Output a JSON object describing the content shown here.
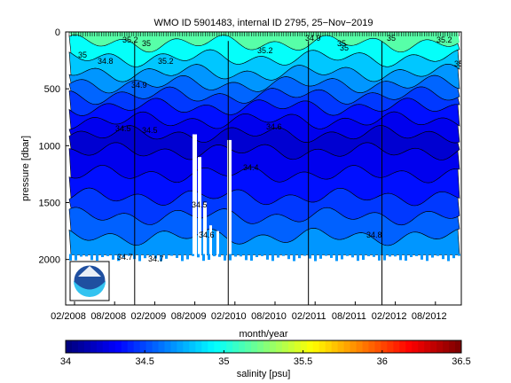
{
  "chart_data": {
    "type": "heatmap",
    "title": "WMO ID 5901483, internal ID 2795, 25−Nov−2019",
    "xlabel": "month/year",
    "ylabel": "pressure [dbar]",
    "x_ticks": [
      "02/2008",
      "08/2008",
      "02/2009",
      "08/2009",
      "02/2010",
      "08/2010",
      "02/2011",
      "08/2011",
      "02/2012",
      "08/2012"
    ],
    "x_range": [
      "2008-02",
      "2012-11"
    ],
    "y_ticks": [
      0,
      500,
      1000,
      1500,
      2000
    ],
    "ylim": [
      2400,
      0
    ],
    "y_reversed": true,
    "colorbar": {
      "label": "salinity [psu]",
      "ticks": [
        "34",
        "34.5",
        "35",
        "35.5",
        "36",
        "36.5"
      ],
      "range": [
        34,
        36.5
      ]
    },
    "contour_labels": [
      "35",
      "34.8",
      "35.2",
      "35",
      "35.2",
      "34.9",
      "34.5",
      "34.5",
      "34.4",
      "34.5",
      "34.6",
      "34.6",
      "34.7",
      "34.7",
      "35.2",
      "34.9",
      "35",
      "35",
      "35.2",
      "35",
      "34.8",
      "35"
    ],
    "depth_bands": [
      {
        "top": 0,
        "value": 35.15
      },
      {
        "top": 100,
        "value": 34.95
      },
      {
        "top": 230,
        "value": 34.8
      },
      {
        "top": 360,
        "value": 34.68
      },
      {
        "top": 460,
        "value": 34.56
      },
      {
        "top": 560,
        "value": 34.45
      },
      {
        "top": 660,
        "value": 34.35
      },
      {
        "top": 780,
        "value": 34.27
      },
      {
        "top": 900,
        "value": 34.2
      },
      {
        "top": 1050,
        "value": 34.27
      },
      {
        "top": 1250,
        "value": 34.35
      },
      {
        "top": 1450,
        "value": 34.45
      },
      {
        "top": 1620,
        "value": 34.55
      },
      {
        "top": 1800,
        "value": 34.68
      }
    ],
    "profile_bottom": 1960,
    "vertical_markers": [
      "2008-11",
      "2010-01",
      "2011-01",
      "2011-12"
    ],
    "logo": "noaa-logo"
  }
}
